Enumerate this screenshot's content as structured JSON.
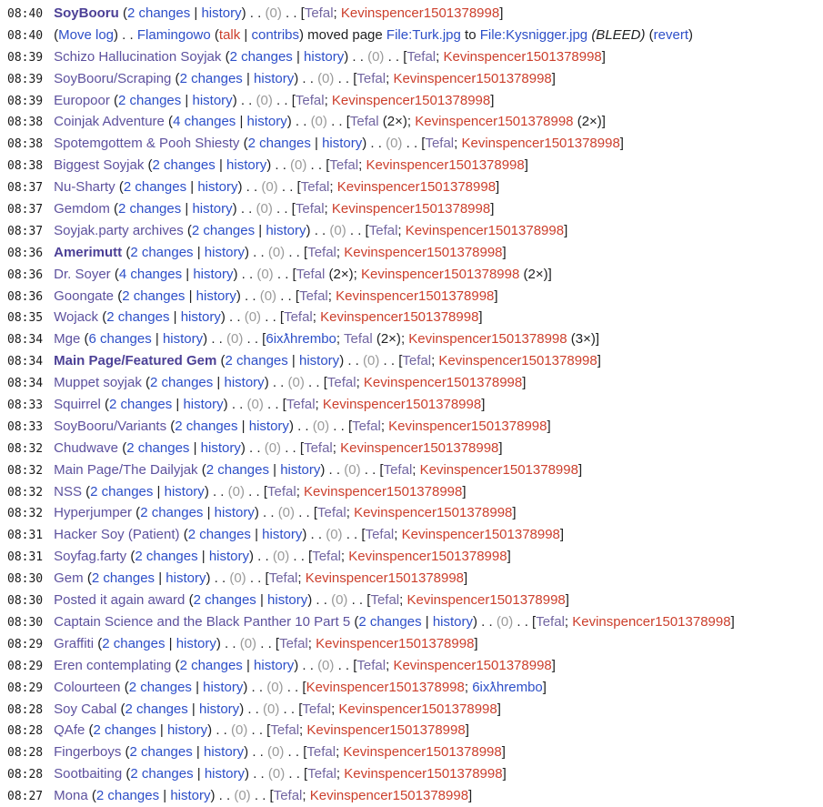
{
  "colors": {
    "link_blue": "#2d4fc8",
    "link_visited_title": "#5d519e",
    "link_visited_user": "#7265a1",
    "link_red": "#cc3f2c",
    "text": "#202122",
    "diff_null_gray": "#9a9a9a",
    "background": "#ffffff"
  },
  "labels": {
    "history": "history",
    "diff_null": "(0)",
    "open_paren": " (",
    "pipe_sep": " | ",
    "close_paren_dots": ") . . ",
    "dots_bracket_open": " . . [",
    "bracket_close": "]",
    "author_sep": "; ",
    "count_open": " (",
    "count_close": ")"
  },
  "rows": [
    {
      "type": "page",
      "time": "08:40",
      "title": "SoyBooru",
      "bold": true,
      "changes": "2 changes",
      "authors": [
        [
          "Tefal",
          "v",
          ""
        ],
        [
          "Kevinspencer1501378998",
          "r",
          ""
        ]
      ]
    },
    {
      "type": "log",
      "time": "08:40",
      "segments": [
        {
          "t": "text",
          "s": "("
        },
        {
          "t": "link",
          "s": "Move log"
        },
        {
          "t": "text",
          "s": ") . . "
        },
        {
          "t": "link",
          "s": "Flamingowo"
        },
        {
          "t": "text",
          "s": " ("
        },
        {
          "t": "redlink",
          "s": "talk"
        },
        {
          "t": "text",
          "s": " | "
        },
        {
          "t": "link",
          "s": "contribs"
        },
        {
          "t": "text",
          "s": ") moved page "
        },
        {
          "t": "link",
          "s": "File:Turk.jpg"
        },
        {
          "t": "text",
          "s": " to "
        },
        {
          "t": "link",
          "s": "File:Kysnigger.jpg"
        },
        {
          "t": "text",
          "s": " "
        },
        {
          "t": "italic",
          "s": "(BLEED)"
        },
        {
          "t": "text",
          "s": " ("
        },
        {
          "t": "link",
          "s": "revert"
        },
        {
          "t": "text",
          "s": ")"
        }
      ]
    },
    {
      "type": "page",
      "time": "08:39",
      "title": "Schizo Hallucination Soyjak",
      "bold": false,
      "changes": "2 changes",
      "authors": [
        [
          "Tefal",
          "v",
          ""
        ],
        [
          "Kevinspencer1501378998",
          "r",
          ""
        ]
      ]
    },
    {
      "type": "page",
      "time": "08:39",
      "title": "SoyBooru/Scraping",
      "bold": false,
      "changes": "2 changes",
      "authors": [
        [
          "Tefal",
          "v",
          ""
        ],
        [
          "Kevinspencer1501378998",
          "r",
          ""
        ]
      ]
    },
    {
      "type": "page",
      "time": "08:39",
      "title": "Europoor",
      "bold": false,
      "changes": "2 changes",
      "authors": [
        [
          "Tefal",
          "v",
          ""
        ],
        [
          "Kevinspencer1501378998",
          "r",
          ""
        ]
      ]
    },
    {
      "type": "page",
      "time": "08:38",
      "title": "Coinjak Adventure",
      "bold": false,
      "changes": "4 changes",
      "authors": [
        [
          "Tefal",
          "v",
          "2×"
        ],
        [
          "Kevinspencer1501378998",
          "r",
          "2×"
        ]
      ]
    },
    {
      "type": "page",
      "time": "08:38",
      "title": "Spotemgottem & Pooh Shiesty",
      "bold": false,
      "changes": "2 changes",
      "authors": [
        [
          "Tefal",
          "v",
          ""
        ],
        [
          "Kevinspencer1501378998",
          "r",
          ""
        ]
      ]
    },
    {
      "type": "page",
      "time": "08:38",
      "title": "Biggest Soyjak",
      "bold": false,
      "changes": "2 changes",
      "authors": [
        [
          "Tefal",
          "v",
          ""
        ],
        [
          "Kevinspencer1501378998",
          "r",
          ""
        ]
      ]
    },
    {
      "type": "page",
      "time": "08:37",
      "title": "Nu-Sharty",
      "bold": false,
      "changes": "2 changes",
      "authors": [
        [
          "Tefal",
          "v",
          ""
        ],
        [
          "Kevinspencer1501378998",
          "r",
          ""
        ]
      ]
    },
    {
      "type": "page",
      "time": "08:37",
      "title": "Gemdom",
      "bold": false,
      "changes": "2 changes",
      "authors": [
        [
          "Tefal",
          "v",
          ""
        ],
        [
          "Kevinspencer1501378998",
          "r",
          ""
        ]
      ]
    },
    {
      "type": "page",
      "time": "08:37",
      "title": "Soyjak.party archives",
      "bold": false,
      "changes": "2 changes",
      "authors": [
        [
          "Tefal",
          "v",
          ""
        ],
        [
          "Kevinspencer1501378998",
          "r",
          ""
        ]
      ]
    },
    {
      "type": "page",
      "time": "08:36",
      "title": "Amerimutt",
      "bold": true,
      "changes": "2 changes",
      "authors": [
        [
          "Tefal",
          "v",
          ""
        ],
        [
          "Kevinspencer1501378998",
          "r",
          ""
        ]
      ]
    },
    {
      "type": "page",
      "time": "08:36",
      "title": "Dr. Soyer",
      "bold": false,
      "changes": "4 changes",
      "authors": [
        [
          "Tefal",
          "v",
          "2×"
        ],
        [
          "Kevinspencer1501378998",
          "r",
          "2×"
        ]
      ]
    },
    {
      "type": "page",
      "time": "08:36",
      "title": "Goongate",
      "bold": false,
      "changes": "2 changes",
      "authors": [
        [
          "Tefal",
          "v",
          ""
        ],
        [
          "Kevinspencer1501378998",
          "r",
          ""
        ]
      ]
    },
    {
      "type": "page",
      "time": "08:35",
      "title": "Wojack",
      "bold": false,
      "changes": "2 changes",
      "authors": [
        [
          "Tefal",
          "v",
          ""
        ],
        [
          "Kevinspencer1501378998",
          "r",
          ""
        ]
      ]
    },
    {
      "type": "page",
      "time": "08:34",
      "title": "Mge",
      "bold": false,
      "changes": "6 changes",
      "authors": [
        [
          "6ixƛhrembo",
          "b",
          ""
        ],
        [
          "Tefal",
          "v",
          "2×"
        ],
        [
          "Kevinspencer1501378998",
          "r",
          "3×"
        ]
      ]
    },
    {
      "type": "page",
      "time": "08:34",
      "title": "Main Page/Featured Gem",
      "bold": true,
      "changes": "2 changes",
      "authors": [
        [
          "Tefal",
          "v",
          ""
        ],
        [
          "Kevinspencer1501378998",
          "r",
          ""
        ]
      ]
    },
    {
      "type": "page",
      "time": "08:34",
      "title": "Muppet soyjak",
      "bold": false,
      "changes": "2 changes",
      "authors": [
        [
          "Tefal",
          "v",
          ""
        ],
        [
          "Kevinspencer1501378998",
          "r",
          ""
        ]
      ]
    },
    {
      "type": "page",
      "time": "08:33",
      "title": "Squirrel",
      "bold": false,
      "changes": "2 changes",
      "authors": [
        [
          "Tefal",
          "v",
          ""
        ],
        [
          "Kevinspencer1501378998",
          "r",
          ""
        ]
      ]
    },
    {
      "type": "page",
      "time": "08:33",
      "title": "SoyBooru/Variants",
      "bold": false,
      "changes": "2 changes",
      "authors": [
        [
          "Tefal",
          "v",
          ""
        ],
        [
          "Kevinspencer1501378998",
          "r",
          ""
        ]
      ]
    },
    {
      "type": "page",
      "time": "08:32",
      "title": "Chudwave",
      "bold": false,
      "changes": "2 changes",
      "authors": [
        [
          "Tefal",
          "v",
          ""
        ],
        [
          "Kevinspencer1501378998",
          "r",
          ""
        ]
      ]
    },
    {
      "type": "page",
      "time": "08:32",
      "title": "Main Page/The Dailyjak",
      "bold": false,
      "changes": "2 changes",
      "authors": [
        [
          "Tefal",
          "v",
          ""
        ],
        [
          "Kevinspencer1501378998",
          "r",
          ""
        ]
      ]
    },
    {
      "type": "page",
      "time": "08:32",
      "title": "NSS",
      "bold": false,
      "changes": "2 changes",
      "authors": [
        [
          "Tefal",
          "v",
          ""
        ],
        [
          "Kevinspencer1501378998",
          "r",
          ""
        ]
      ]
    },
    {
      "type": "page",
      "time": "08:32",
      "title": "Hyperjumper",
      "bold": false,
      "changes": "2 changes",
      "authors": [
        [
          "Tefal",
          "v",
          ""
        ],
        [
          "Kevinspencer1501378998",
          "r",
          ""
        ]
      ]
    },
    {
      "type": "page",
      "time": "08:31",
      "title": "Hacker Soy (Patient)",
      "bold": false,
      "changes": "2 changes",
      "authors": [
        [
          "Tefal",
          "v",
          ""
        ],
        [
          "Kevinspencer1501378998",
          "r",
          ""
        ]
      ]
    },
    {
      "type": "page",
      "time": "08:31",
      "title": "Soyfag.farty",
      "bold": false,
      "changes": "2 changes",
      "authors": [
        [
          "Tefal",
          "v",
          ""
        ],
        [
          "Kevinspencer1501378998",
          "r",
          ""
        ]
      ]
    },
    {
      "type": "page",
      "time": "08:30",
      "title": "Gem",
      "bold": false,
      "changes": "2 changes",
      "authors": [
        [
          "Tefal",
          "v",
          ""
        ],
        [
          "Kevinspencer1501378998",
          "r",
          ""
        ]
      ]
    },
    {
      "type": "page",
      "time": "08:30",
      "title": "Posted it again award",
      "bold": false,
      "changes": "2 changes",
      "authors": [
        [
          "Tefal",
          "v",
          ""
        ],
        [
          "Kevinspencer1501378998",
          "r",
          ""
        ]
      ]
    },
    {
      "type": "page",
      "time": "08:30",
      "title": "Captain Science and the Black Panther 10 Part 5",
      "bold": false,
      "changes": "2 changes",
      "authors": [
        [
          "Tefal",
          "v",
          ""
        ],
        [
          "Kevinspencer1501378998",
          "r",
          ""
        ]
      ]
    },
    {
      "type": "page",
      "time": "08:29",
      "title": "Graffiti",
      "bold": false,
      "changes": "2 changes",
      "authors": [
        [
          "Tefal",
          "v",
          ""
        ],
        [
          "Kevinspencer1501378998",
          "r",
          ""
        ]
      ]
    },
    {
      "type": "page",
      "time": "08:29",
      "title": "Eren contemplating",
      "bold": false,
      "changes": "2 changes",
      "authors": [
        [
          "Tefal",
          "v",
          ""
        ],
        [
          "Kevinspencer1501378998",
          "r",
          ""
        ]
      ]
    },
    {
      "type": "page",
      "time": "08:29",
      "title": "Colourteen",
      "bold": false,
      "changes": "2 changes",
      "authors": [
        [
          "Kevinspencer1501378998",
          "r",
          ""
        ],
        [
          "6ixƛhrembo",
          "b",
          ""
        ]
      ]
    },
    {
      "type": "page",
      "time": "08:28",
      "title": "Soy Cabal",
      "bold": false,
      "changes": "2 changes",
      "authors": [
        [
          "Tefal",
          "v",
          ""
        ],
        [
          "Kevinspencer1501378998",
          "r",
          ""
        ]
      ]
    },
    {
      "type": "page",
      "time": "08:28",
      "title": "QAfe",
      "bold": false,
      "changes": "2 changes",
      "authors": [
        [
          "Tefal",
          "v",
          ""
        ],
        [
          "Kevinspencer1501378998",
          "r",
          ""
        ]
      ]
    },
    {
      "type": "page",
      "time": "08:28",
      "title": "Fingerboys",
      "bold": false,
      "changes": "2 changes",
      "authors": [
        [
          "Tefal",
          "v",
          ""
        ],
        [
          "Kevinspencer1501378998",
          "r",
          ""
        ]
      ]
    },
    {
      "type": "page",
      "time": "08:28",
      "title": "Sootbaiting",
      "bold": false,
      "changes": "2 changes",
      "authors": [
        [
          "Tefal",
          "v",
          ""
        ],
        [
          "Kevinspencer1501378998",
          "r",
          ""
        ]
      ]
    },
    {
      "type": "page",
      "time": "08:27",
      "title": "Mona",
      "bold": false,
      "changes": "2 changes",
      "authors": [
        [
          "Tefal",
          "v",
          ""
        ],
        [
          "Kevinspencer1501378998",
          "r",
          ""
        ]
      ]
    }
  ]
}
